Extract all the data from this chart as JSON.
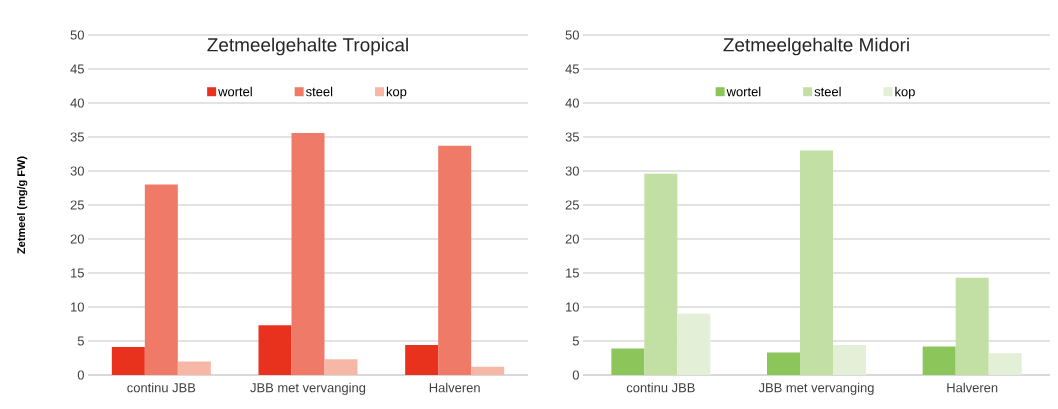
{
  "chart_data": [
    {
      "type": "bar",
      "title": "Zetmeelgehalte Tropical",
      "ylabel": "Zetmeel (mg/g FW)",
      "categories": [
        "continu JBB",
        "JBB met vervanging",
        "Halveren"
      ],
      "series": [
        {
          "name": "wortel",
          "color": "#e8321e",
          "values": [
            4.1,
            7.3,
            4.4
          ]
        },
        {
          "name": "steel",
          "color": "#f07a68",
          "values": [
            28,
            35.6,
            33.7
          ]
        },
        {
          "name": "kop",
          "color": "#f7b7a6",
          "values": [
            2.0,
            2.3,
            1.2
          ]
        }
      ],
      "ylim": [
        0,
        50
      ],
      "yticks": [
        0,
        5,
        10,
        15,
        20,
        25,
        30,
        35,
        40,
        45,
        50
      ],
      "grid": "y",
      "legend": "top"
    },
    {
      "type": "bar",
      "title": "Zetmeelgehalte Midori",
      "categories": [
        "continu JBB",
        "JBB met vervanging",
        "Halveren"
      ],
      "series": [
        {
          "name": "wortel",
          "color": "#8cc65a",
          "values": [
            3.9,
            3.3,
            4.2
          ]
        },
        {
          "name": "steel",
          "color": "#c2e0a4",
          "values": [
            29.6,
            33.0,
            14.3
          ]
        },
        {
          "name": "kop",
          "color": "#e3efd6",
          "values": [
            9.0,
            4.4,
            3.2
          ]
        }
      ],
      "ylim": [
        0,
        50
      ],
      "yticks": [
        0,
        5,
        10,
        15,
        20,
        25,
        30,
        35,
        40,
        45,
        50
      ],
      "grid": "y",
      "legend": "top"
    }
  ]
}
